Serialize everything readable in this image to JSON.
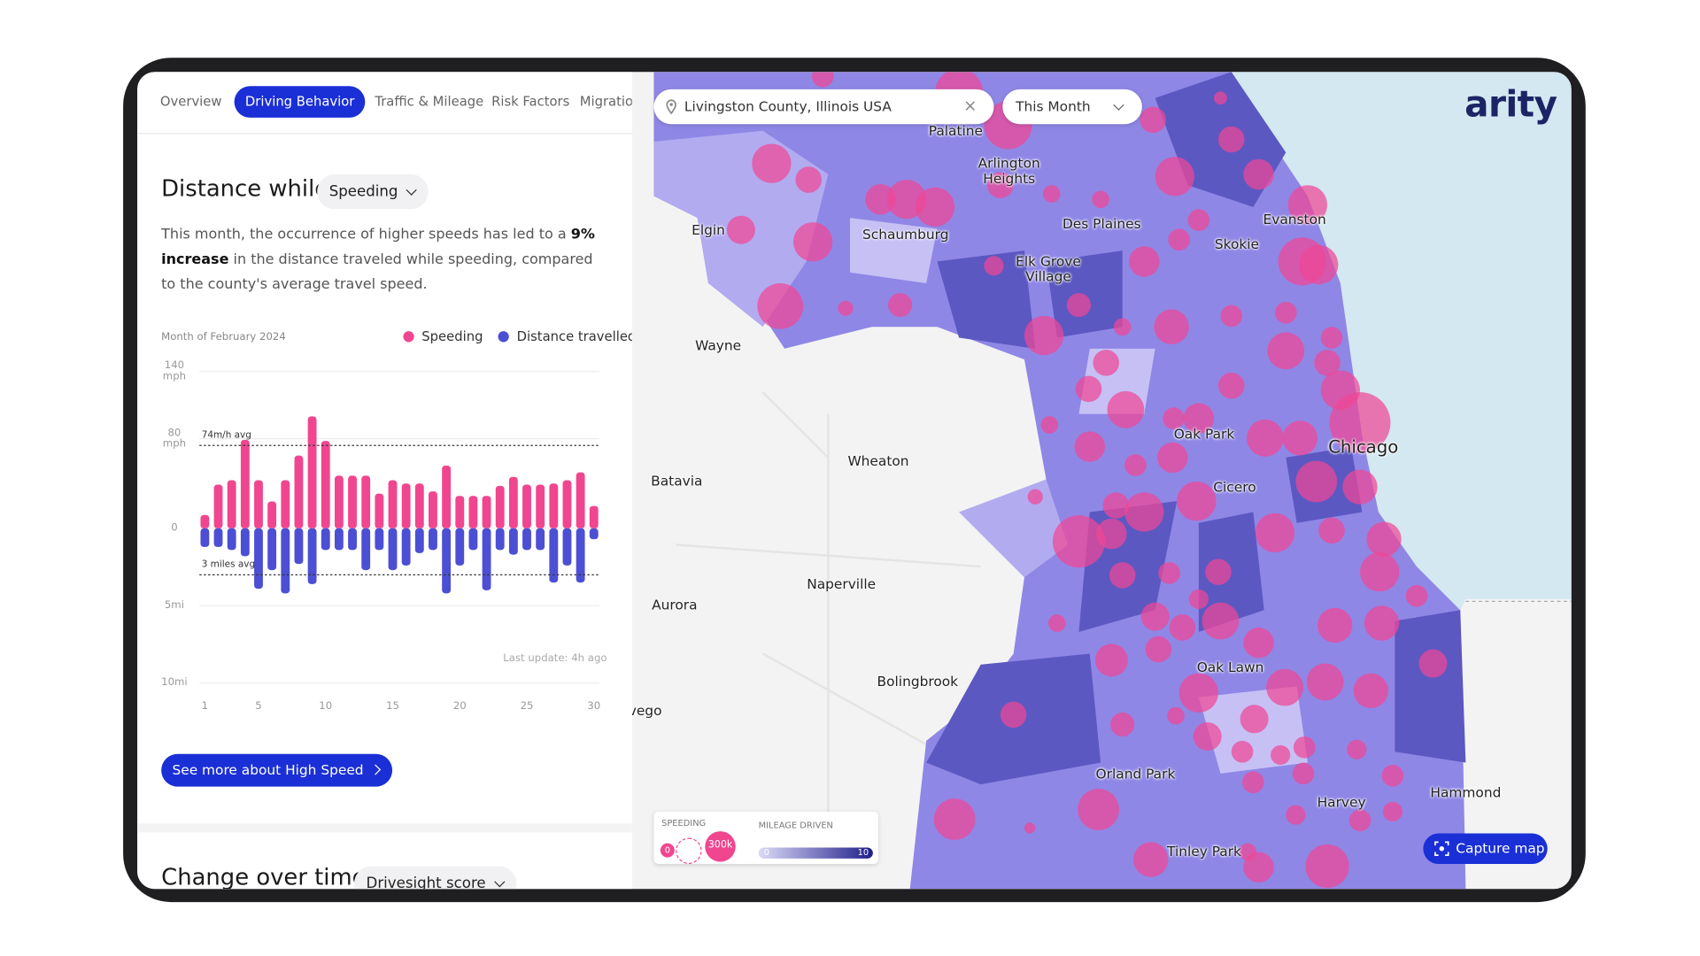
{
  "tabs": [
    "Overview",
    "Driving Behavior",
    "Traffic & Mileage",
    "Risk Factors",
    "Migration"
  ],
  "section": {
    "title": "Distance while",
    "metric": "Speeding",
    "description": [
      "This month, the occurrence of higher speeds has led to a ",
      "9% increase",
      " in the distance traveled while speeding, compared to the county's average travel speed."
    ],
    "button": "See more about High Speed"
  },
  "chart_data": {
    "type": "bar",
    "subtitle": "Month of February 2024",
    "footnote": "Last update: 4h ago",
    "x": [
      1,
      2,
      3,
      4,
      5,
      6,
      7,
      8,
      9,
      10,
      11,
      12,
      13,
      14,
      15,
      16,
      17,
      18,
      19,
      20,
      21,
      22,
      23,
      24,
      25,
      26,
      27,
      28,
      29,
      30
    ],
    "xlim": [
      1,
      30
    ],
    "xticks": [
      1,
      5,
      10,
      15,
      20,
      25,
      30
    ],
    "ylim": [
      0,
      140
    ],
    "yticks": [
      0,
      {
        "value": 80,
        "label": "80 mph"
      },
      {
        "value": 140,
        "label": "140 mph"
      }
    ],
    "y2lim": [
      0,
      10
    ],
    "y2ticks": [
      {
        "value": 5,
        "label": "5mi"
      },
      {
        "value": 10,
        "label": "10mi"
      }
    ],
    "grid": true,
    "series": [
      {
        "name": "Speeding",
        "color": "#f0468f",
        "values": [
          12,
          39,
          43,
          79,
          43,
          24,
          43,
          65,
          100,
          78,
          47,
          47,
          47,
          31,
          43,
          40,
          40,
          33,
          56,
          29,
          29,
          29,
          38,
          46,
          39,
          39,
          40,
          43,
          50,
          20
        ]
      },
      {
        "name": "Distance travelled",
        "color": "#4c4fd3",
        "axis": "y2",
        "values": [
          1.2,
          1.2,
          1.4,
          1.8,
          3.9,
          2.7,
          4.2,
          2.3,
          3.6,
          1.4,
          1.4,
          1.4,
          2.7,
          1.4,
          2.7,
          2.4,
          1.6,
          1.4,
          4.2,
          2.4,
          1.4,
          4.0,
          1.4,
          1.7,
          1.4,
          1.4,
          3.5,
          2.4,
          3.5,
          0.7
        ]
      }
    ],
    "annotations": [
      {
        "label": "74m/h avg",
        "value": 74
      },
      {
        "label": "3 miles avg",
        "value": 3,
        "axis": "y2"
      }
    ]
  },
  "section2": {
    "title": "Change over time",
    "metric": "Drivesight score"
  },
  "map": {
    "search": "Livingston County, Illinois USA",
    "period": "This Month",
    "logo": "arity",
    "capture": "Capture map",
    "legend": {
      "speeding": "SPEEDING",
      "speeding_min": "0",
      "speeding_max": "300k",
      "mileage": "MILEAGE DRIVEN",
      "mileage_min": "0",
      "mileage_max": "10"
    },
    "labels": [
      "Palatine",
      "Arlington Heights",
      "Elgin",
      "Schaumburg",
      "Des Plaines",
      "Evanston",
      "Skokie",
      "Elk Grove Village",
      "Wayne",
      "Oak Park",
      "Chicago",
      "Wheaton",
      "Batavia",
      "Cicero",
      "Naperville",
      "Aurora",
      "Oak Lawn",
      "Bolingbrook",
      "vego",
      "Orland Park",
      "Hammond",
      "Harvey",
      "Tinley Park"
    ]
  }
}
